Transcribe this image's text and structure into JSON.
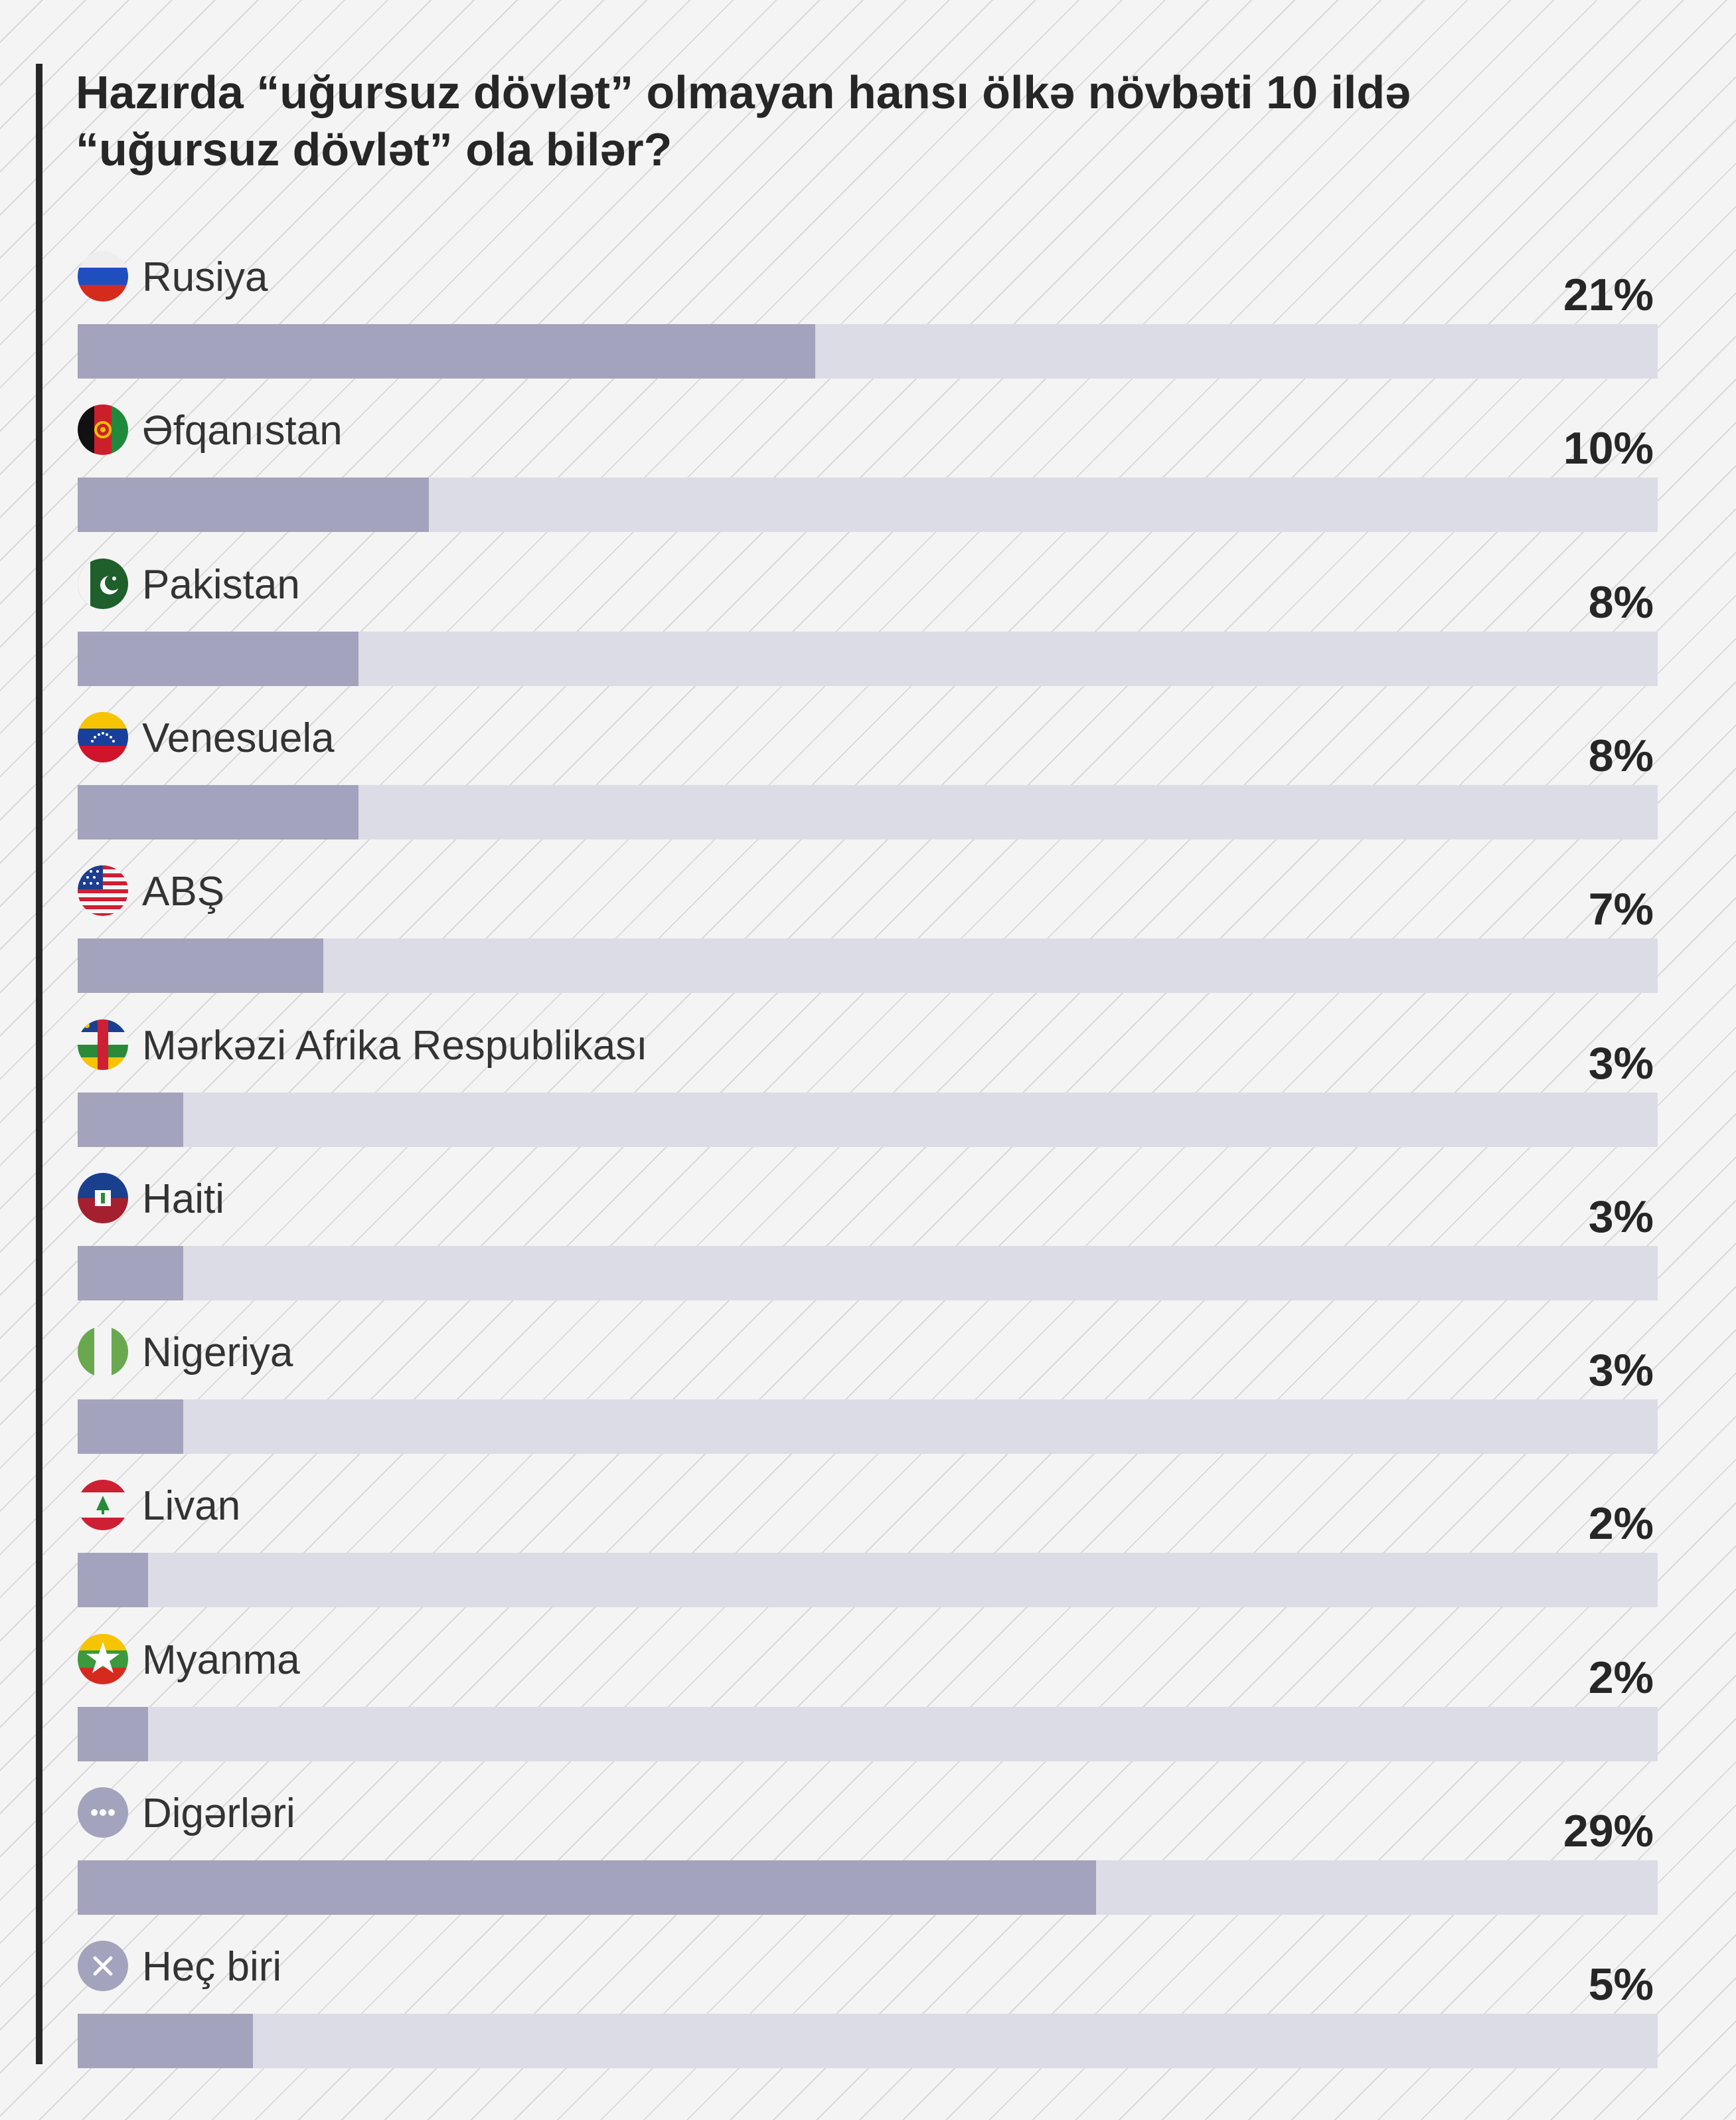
{
  "chart_data": {
    "type": "bar",
    "orientation": "horizontal",
    "title": "Hazırda “uğursuz dövlət” olmayan hansı ölkə növbəti 10 ildə “uğursuz dövlət” ola bilər?",
    "xlim": [
      0,
      45
    ],
    "colors": {
      "bar_fill": "#a3a3bd",
      "bar_track": "#dcdce6",
      "text": "#262626"
    },
    "series": [
      {
        "values": [
          21,
          10,
          8,
          8,
          7,
          3,
          3,
          3,
          2,
          2,
          29,
          5
        ]
      }
    ],
    "categories": [
      "Rusiya",
      "Əfqanıstan",
      "Pakistan",
      "Venesuela",
      "ABŞ",
      "Mərkəzi Afrika Respublikası",
      "Haiti",
      "Nigeriya",
      "Livan",
      "Myanma",
      "Digərləri",
      "Heç biri"
    ],
    "data_labels": [
      "21%",
      "10%",
      "8%",
      "8%",
      "7%",
      "3%",
      "3%",
      "3%",
      "2%",
      "2%",
      "29%",
      "5%"
    ],
    "icons": [
      "russia-flag-icon",
      "afghanistan-flag-icon",
      "pakistan-flag-icon",
      "venezuela-flag-icon",
      "usa-flag-icon",
      "central-african-republic-flag-icon",
      "haiti-flag-icon",
      "nigeria-flag-icon",
      "lebanon-flag-icon",
      "myanmar-flag-icon",
      "more-dots-icon",
      "close-x-icon"
    ]
  }
}
